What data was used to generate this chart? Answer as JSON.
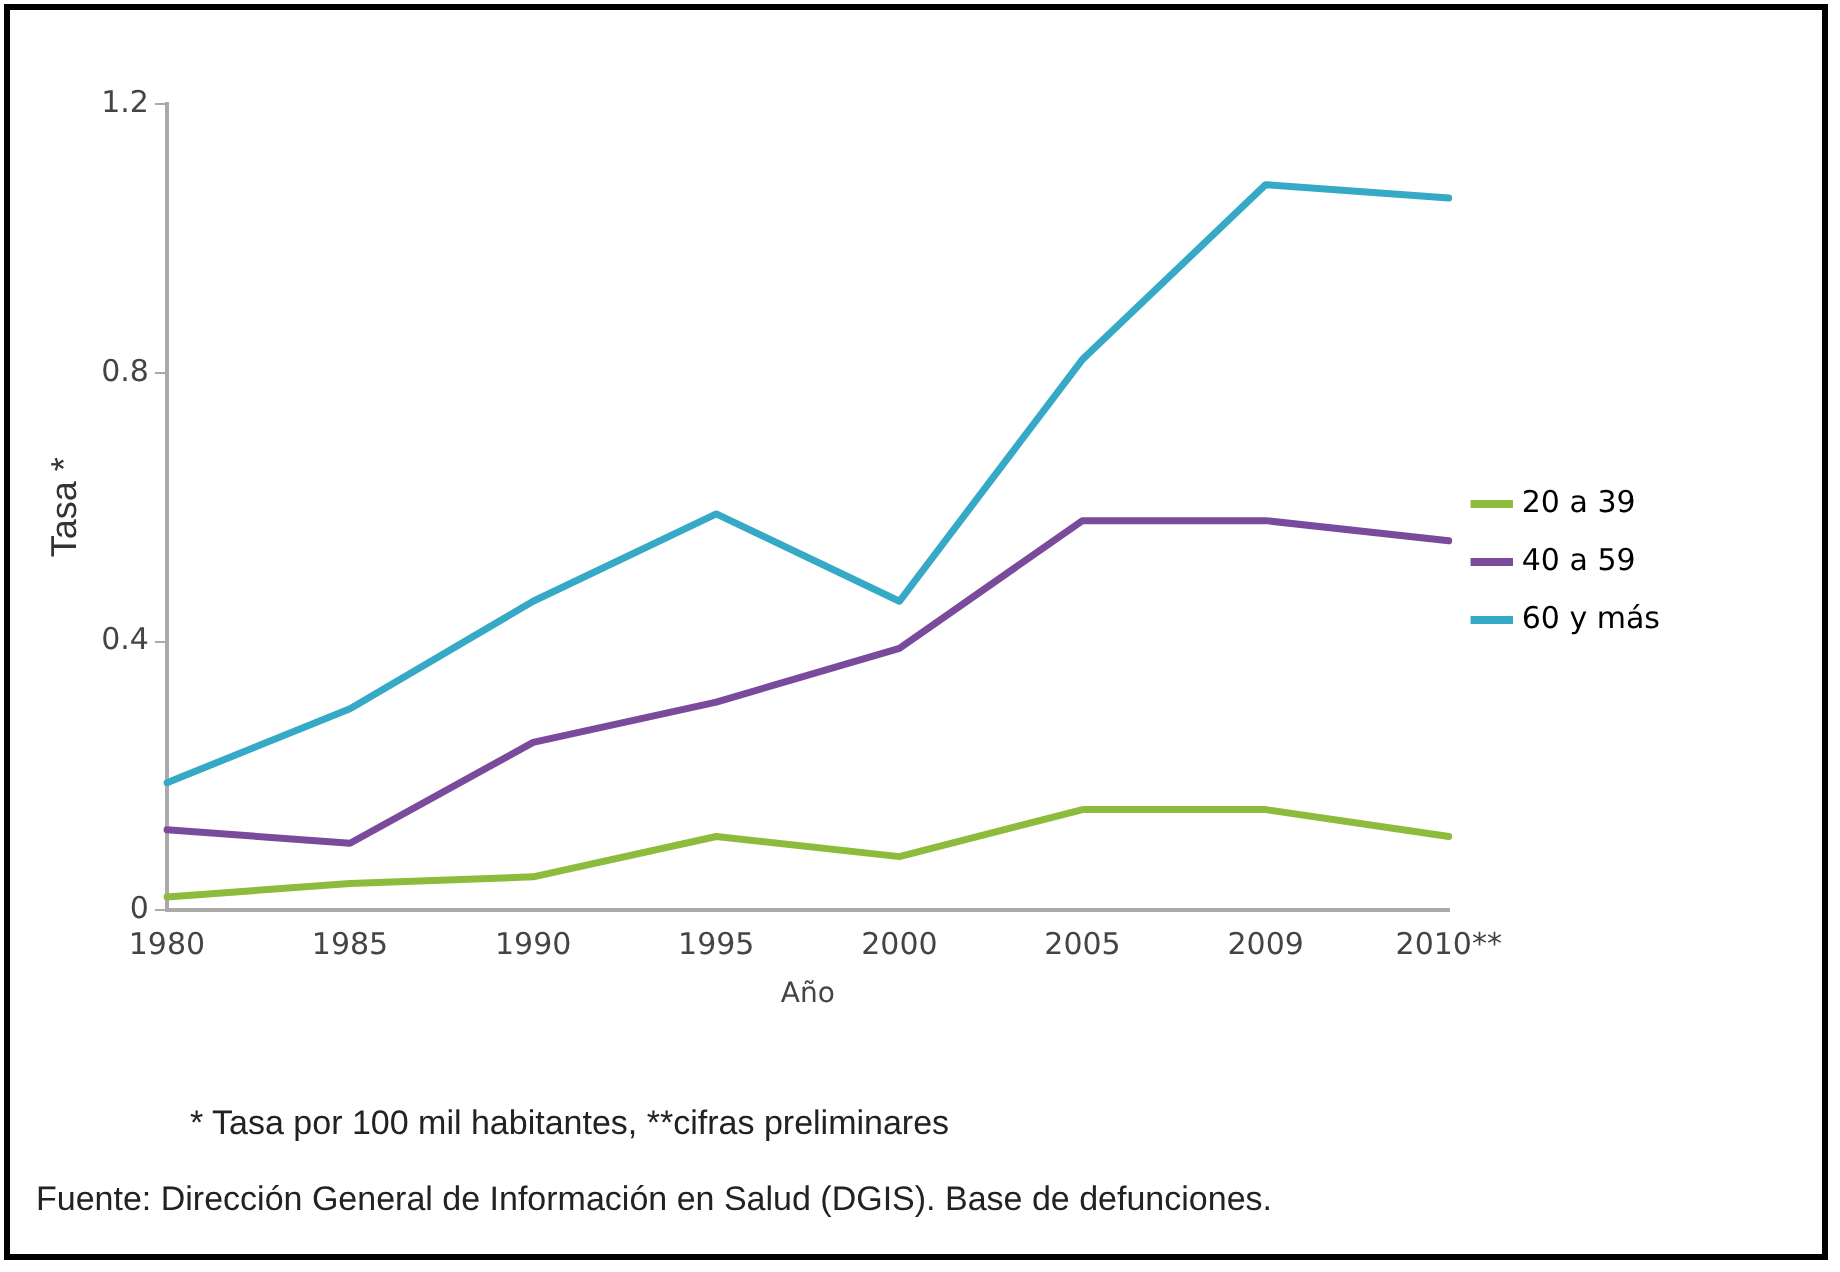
{
  "chart_data": {
    "type": "line",
    "xlabel": "Año",
    "ylabel": "Tasa *",
    "categories": [
      "1980",
      "1985",
      "1990",
      "1995",
      "2000",
      "2005",
      "2009",
      "2010**"
    ],
    "series": [
      {
        "name": "20 a 39",
        "color": "#8dbb3c",
        "values": [
          0.02,
          0.04,
          0.05,
          0.11,
          0.08,
          0.15,
          0.15,
          0.11
        ]
      },
      {
        "name": "40 a 59",
        "color": "#7a4a9c",
        "values": [
          0.12,
          0.1,
          0.25,
          0.31,
          0.39,
          0.58,
          0.58,
          0.55
        ]
      },
      {
        "name": "60 y más",
        "color": "#35a9c6",
        "values": [
          0.19,
          0.3,
          0.46,
          0.59,
          0.46,
          0.82,
          1.08,
          1.06
        ]
      }
    ],
    "ylim": [
      0,
      1.2
    ],
    "yticks": [
      0,
      0.4,
      0.8,
      1.2
    ],
    "grid": false,
    "legend": "right",
    "marker": "none",
    "line_style": "solid",
    "annotations": [
      "* Tasa por 100 mil habitantes, **cifras preliminares",
      "Fuente: Dirección General de Información en Salud (DGIS). Base de defunciones."
    ]
  }
}
